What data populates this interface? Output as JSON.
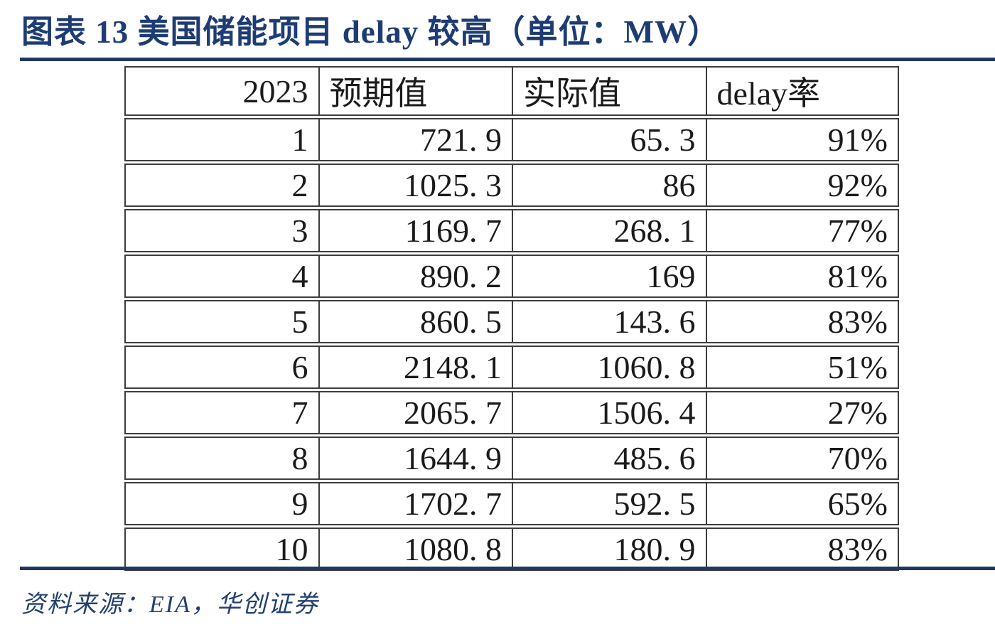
{
  "figure": {
    "title": "图表 13  美国储能项目 delay 较高（单位：MW）",
    "source_note": "资料来源：EIA，华创证券",
    "accent_color": "#1f3864",
    "border_color": "#3d3d3d"
  },
  "chart_data": {
    "type": "table",
    "title": "美国储能项目 delay 较高",
    "unit": "MW",
    "year": "2023",
    "columns": [
      "2023",
      "预期值",
      "实际值",
      "delay率"
    ],
    "months": [
      1,
      2,
      3,
      4,
      5,
      6,
      7,
      8,
      9,
      10
    ],
    "series": [
      {
        "name": "预期值",
        "values": [
          721.9,
          1025.3,
          1169.7,
          890.2,
          860.5,
          2148.1,
          2065.7,
          1644.9,
          1702.7,
          1080.8
        ]
      },
      {
        "name": "实际值",
        "values": [
          65.3,
          86,
          268.1,
          169,
          143.6,
          1060.8,
          1506.4,
          485.6,
          592.5,
          180.9
        ]
      },
      {
        "name": "delay率",
        "values": [
          "91%",
          "92%",
          "77%",
          "81%",
          "83%",
          "51%",
          "27%",
          "70%",
          "65%",
          "83%"
        ]
      }
    ],
    "rows_display": [
      [
        "1",
        "721. 9",
        "65. 3",
        "91%"
      ],
      [
        "2",
        "1025. 3",
        "86",
        "92%"
      ],
      [
        "3",
        "1169. 7",
        "268. 1",
        "77%"
      ],
      [
        "4",
        "890. 2",
        "169",
        "81%"
      ],
      [
        "5",
        "860. 5",
        "143. 6",
        "83%"
      ],
      [
        "6",
        "2148. 1",
        "1060. 8",
        "51%"
      ],
      [
        "7",
        "2065. 7",
        "1506. 4",
        "27%"
      ],
      [
        "8",
        "1644. 9",
        "485. 6",
        "70%"
      ],
      [
        "9",
        "1702. 7",
        "592. 5",
        "65%"
      ],
      [
        "10",
        "1080. 8",
        "180. 9",
        "83%"
      ]
    ]
  }
}
